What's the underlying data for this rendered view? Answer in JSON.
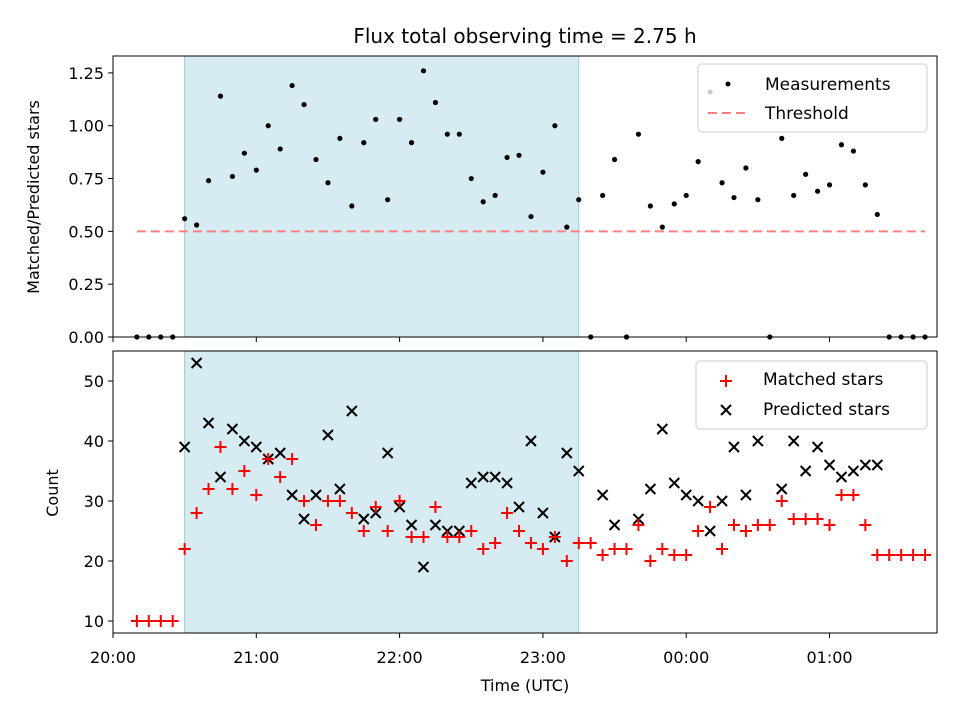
{
  "chart_data": [
    {
      "type": "scatter",
      "title": "Flux total observing time = 2.75 h",
      "ylabel": "Matched/Predicted stars",
      "xlabel": "",
      "xlim": [
        "20:00",
        "01:45"
      ],
      "ylim": [
        0,
        1.33
      ],
      "yticks": [
        "0.00",
        "0.25",
        "0.50",
        "0.75",
        "1.00",
        "1.25"
      ],
      "legend_position": "top-right",
      "highlight_span": {
        "start": "20:30",
        "end": "23:15",
        "color": "#add8e6"
      },
      "series": [
        {
          "name": "Measurements",
          "color": "#000000",
          "marker": "dot",
          "points": [
            [
              "20:10",
              0
            ],
            [
              "20:15",
              0
            ],
            [
              "20:20",
              0
            ],
            [
              "20:25",
              0
            ],
            [
              "20:30",
              0.56
            ],
            [
              "20:35",
              0.53
            ],
            [
              "20:40",
              0.74
            ],
            [
              "20:45",
              1.14
            ],
            [
              "20:50",
              0.76
            ],
            [
              "20:55",
              0.87
            ],
            [
              "21:00",
              0.79
            ],
            [
              "21:05",
              1.0
            ],
            [
              "21:10",
              0.89
            ],
            [
              "21:15",
              1.19
            ],
            [
              "21:20",
              1.1
            ],
            [
              "21:25",
              0.84
            ],
            [
              "21:30",
              0.73
            ],
            [
              "21:35",
              0.94
            ],
            [
              "21:40",
              0.62
            ],
            [
              "21:45",
              0.92
            ],
            [
              "21:50",
              1.03
            ],
            [
              "21:55",
              0.65
            ],
            [
              "22:00",
              1.03
            ],
            [
              "22:05",
              0.92
            ],
            [
              "22:10",
              1.26
            ],
            [
              "22:15",
              1.11
            ],
            [
              "22:20",
              0.96
            ],
            [
              "22:25",
              0.96
            ],
            [
              "22:30",
              0.75
            ],
            [
              "22:35",
              0.64
            ],
            [
              "22:40",
              0.67
            ],
            [
              "22:45",
              0.85
            ],
            [
              "22:50",
              0.86
            ],
            [
              "22:55",
              0.57
            ],
            [
              "23:00",
              0.78
            ],
            [
              "23:05",
              1.0
            ],
            [
              "23:10",
              0.52
            ],
            [
              "23:15",
              0.65
            ],
            [
              "23:20",
              0.0
            ],
            [
              "23:25",
              0.67
            ],
            [
              "23:30",
              0.84
            ],
            [
              "23:35",
              0.0
            ],
            [
              "23:40",
              0.96
            ],
            [
              "23:45",
              0.62
            ],
            [
              "23:50",
              0.52
            ],
            [
              "23:55",
              0.63
            ],
            [
              "00:00",
              0.67
            ],
            [
              "00:05",
              0.83
            ],
            [
              "00:10",
              1.16
            ],
            [
              "00:15",
              0.73
            ],
            [
              "00:20",
              0.66
            ],
            [
              "00:25",
              0.8
            ],
            [
              "00:30",
              0.65
            ],
            [
              "00:35",
              0.0
            ],
            [
              "00:40",
              0.94
            ],
            [
              "00:45",
              0.67
            ],
            [
              "00:50",
              0.77
            ],
            [
              "00:55",
              0.69
            ],
            [
              "01:00",
              0.72
            ],
            [
              "01:05",
              0.91
            ],
            [
              "01:10",
              0.88
            ],
            [
              "01:15",
              0.72
            ],
            [
              "01:20",
              0.58
            ],
            [
              "01:25",
              0
            ],
            [
              "01:30",
              0
            ],
            [
              "01:35",
              0
            ],
            [
              "01:40",
              0
            ]
          ]
        },
        {
          "name": "Threshold",
          "color": "#ff7f7f",
          "style": "dashed-line",
          "points": [
            [
              "20:10",
              0.5
            ],
            [
              "01:40",
              0.5
            ]
          ]
        }
      ]
    },
    {
      "type": "scatter",
      "title": "",
      "ylabel": "Count",
      "xlabel": "Time (UTC)",
      "xlim": [
        "20:00",
        "01:45"
      ],
      "ylim": [
        8,
        55
      ],
      "yticks": [
        "10",
        "20",
        "30",
        "40",
        "50"
      ],
      "xticks": [
        "20:00",
        "21:00",
        "22:00",
        "23:00",
        "00:00",
        "01:00"
      ],
      "legend_position": "top-right",
      "highlight_span": {
        "start": "20:30",
        "end": "23:15",
        "color": "#add8e6"
      },
      "series": [
        {
          "name": "Matched stars",
          "color": "#ff0000",
          "marker": "plus",
          "points": [
            [
              "20:10",
              10
            ],
            [
              "20:15",
              10
            ],
            [
              "20:20",
              10
            ],
            [
              "20:25",
              10
            ],
            [
              "20:30",
              22
            ],
            [
              "20:35",
              28
            ],
            [
              "20:40",
              32
            ],
            [
              "20:45",
              39
            ],
            [
              "20:50",
              32
            ],
            [
              "20:55",
              35
            ],
            [
              "21:00",
              31
            ],
            [
              "21:05",
              37
            ],
            [
              "21:10",
              34
            ],
            [
              "21:15",
              37
            ],
            [
              "21:20",
              30
            ],
            [
              "21:25",
              26
            ],
            [
              "21:30",
              30
            ],
            [
              "21:35",
              30
            ],
            [
              "21:40",
              28
            ],
            [
              "21:45",
              25
            ],
            [
              "21:50",
              29
            ],
            [
              "21:55",
              25
            ],
            [
              "22:00",
              30
            ],
            [
              "22:05",
              24
            ],
            [
              "22:10",
              24
            ],
            [
              "22:15",
              29
            ],
            [
              "22:20",
              24
            ],
            [
              "22:25",
              24
            ],
            [
              "22:30",
              25
            ],
            [
              "22:35",
              22
            ],
            [
              "22:40",
              23
            ],
            [
              "22:45",
              28
            ],
            [
              "22:50",
              25
            ],
            [
              "22:55",
              23
            ],
            [
              "23:00",
              22
            ],
            [
              "23:05",
              24
            ],
            [
              "23:10",
              20
            ],
            [
              "23:15",
              23
            ],
            [
              "23:20",
              23
            ],
            [
              "23:25",
              21
            ],
            [
              "23:30",
              22
            ],
            [
              "23:35",
              22
            ],
            [
              "23:40",
              26
            ],
            [
              "23:45",
              20
            ],
            [
              "23:50",
              22
            ],
            [
              "23:55",
              21
            ],
            [
              "00:00",
              21
            ],
            [
              "00:05",
              25
            ],
            [
              "00:10",
              29
            ],
            [
              "00:15",
              22
            ],
            [
              "00:20",
              26
            ],
            [
              "00:25",
              25
            ],
            [
              "00:30",
              26
            ],
            [
              "00:35",
              26
            ],
            [
              "00:40",
              30
            ],
            [
              "00:45",
              27
            ],
            [
              "00:50",
              27
            ],
            [
              "00:55",
              27
            ],
            [
              "01:00",
              26
            ],
            [
              "01:05",
              31
            ],
            [
              "01:10",
              31
            ],
            [
              "01:15",
              26
            ],
            [
              "01:20",
              21
            ],
            [
              "01:25",
              21
            ],
            [
              "01:30",
              21
            ],
            [
              "01:35",
              21
            ],
            [
              "01:40",
              21
            ]
          ]
        },
        {
          "name": "Predicted stars",
          "color": "#000000",
          "marker": "x",
          "points": [
            [
              "20:30",
              39
            ],
            [
              "20:35",
              53
            ],
            [
              "20:40",
              43
            ],
            [
              "20:45",
              34
            ],
            [
              "20:50",
              42
            ],
            [
              "20:55",
              40
            ],
            [
              "21:00",
              39
            ],
            [
              "21:05",
              37
            ],
            [
              "21:10",
              38
            ],
            [
              "21:15",
              31
            ],
            [
              "21:20",
              27
            ],
            [
              "21:25",
              31
            ],
            [
              "21:30",
              41
            ],
            [
              "21:35",
              32
            ],
            [
              "21:40",
              45
            ],
            [
              "21:45",
              27
            ],
            [
              "21:50",
              28
            ],
            [
              "21:55",
              38
            ],
            [
              "22:00",
              29
            ],
            [
              "22:05",
              26
            ],
            [
              "22:10",
              19
            ],
            [
              "22:15",
              26
            ],
            [
              "22:20",
              25
            ],
            [
              "22:25",
              25
            ],
            [
              "22:30",
              33
            ],
            [
              "22:35",
              34
            ],
            [
              "22:40",
              34
            ],
            [
              "22:45",
              33
            ],
            [
              "22:50",
              29
            ],
            [
              "22:55",
              40
            ],
            [
              "23:00",
              28
            ],
            [
              "23:05",
              24
            ],
            [
              "23:10",
              38
            ],
            [
              "23:15",
              35
            ],
            [
              "23:25",
              31
            ],
            [
              "23:30",
              26
            ],
            [
              "23:40",
              27
            ],
            [
              "23:45",
              32
            ],
            [
              "23:50",
              42
            ],
            [
              "23:55",
              33
            ],
            [
              "00:00",
              31
            ],
            [
              "00:05",
              30
            ],
            [
              "00:10",
              25
            ],
            [
              "00:15",
              30
            ],
            [
              "00:20",
              39
            ],
            [
              "00:25",
              31
            ],
            [
              "00:30",
              40
            ],
            [
              "00:40",
              32
            ],
            [
              "00:45",
              40
            ],
            [
              "00:50",
              35
            ],
            [
              "00:55",
              39
            ],
            [
              "01:00",
              36
            ],
            [
              "01:05",
              34
            ],
            [
              "01:10",
              35
            ],
            [
              "01:15",
              36
            ],
            [
              "01:20",
              36
            ]
          ]
        }
      ]
    }
  ]
}
